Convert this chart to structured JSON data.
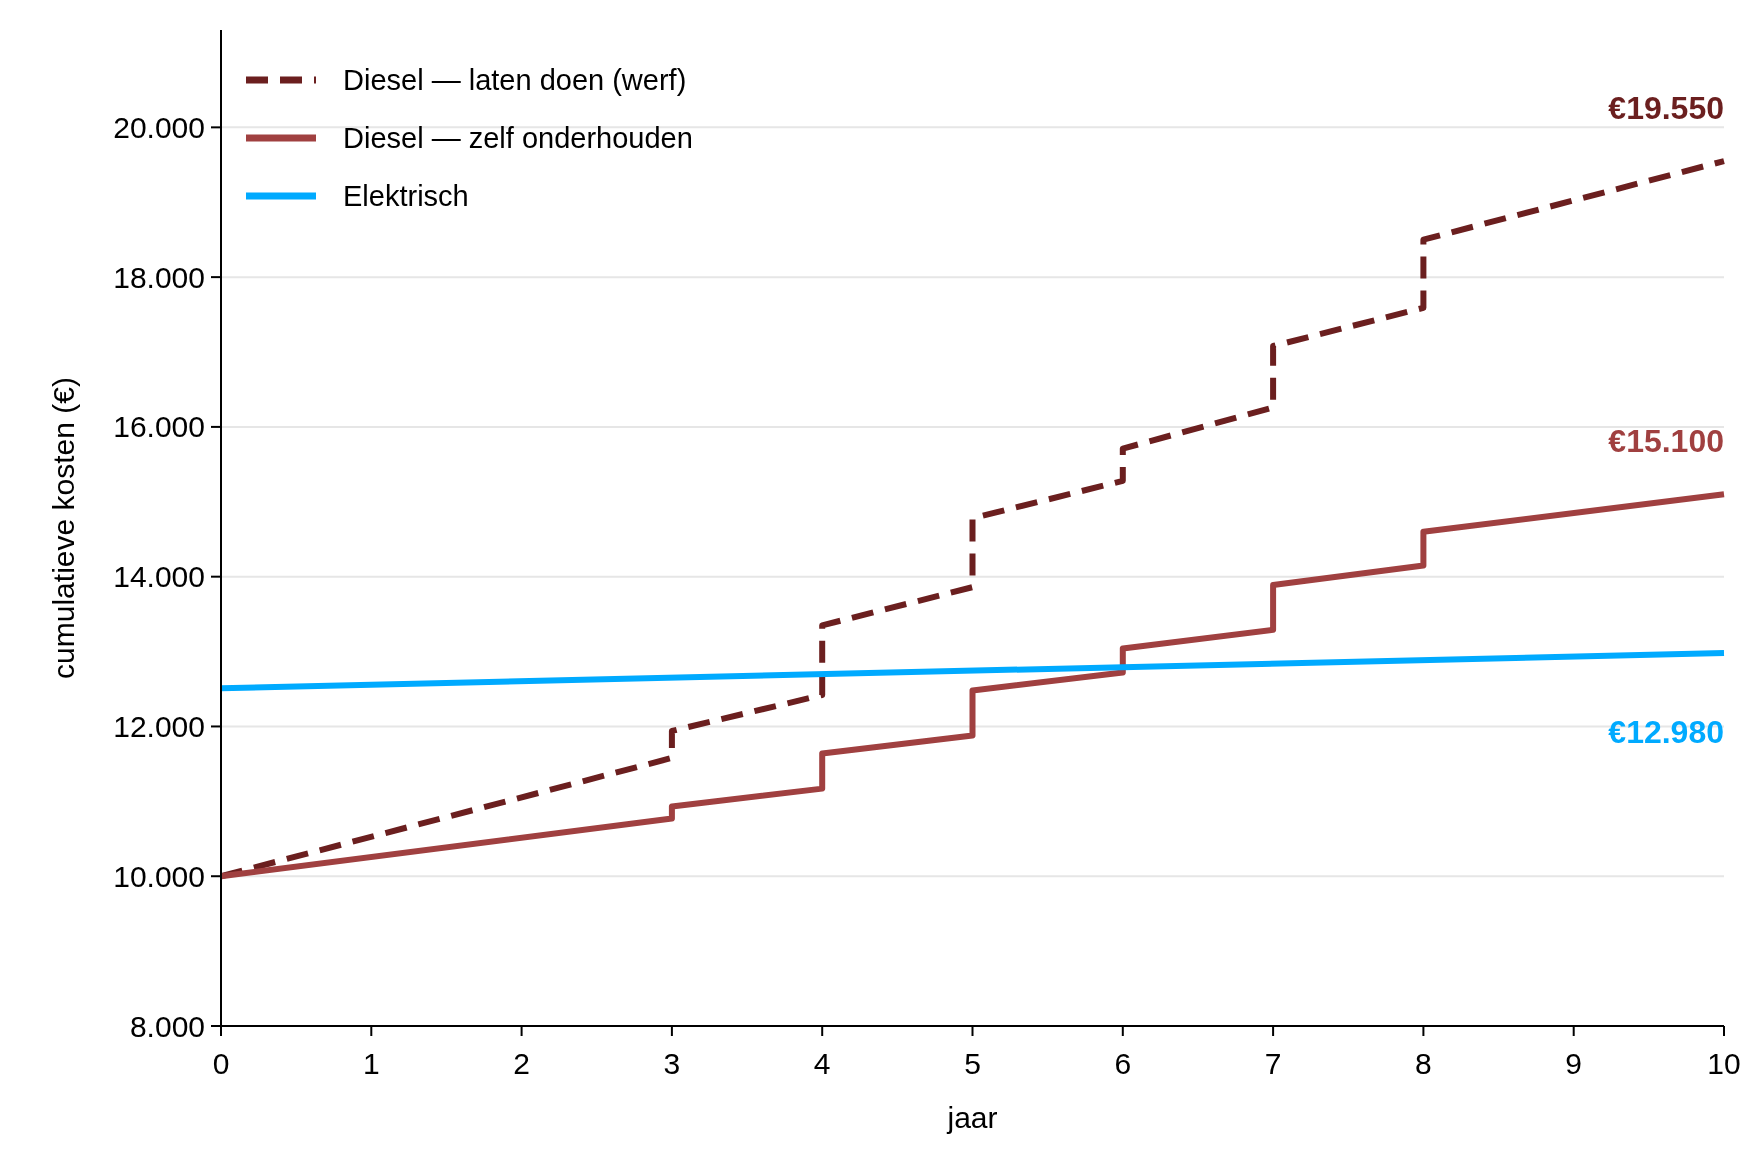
{
  "chart_data": {
    "type": "line",
    "xlabel": "jaar",
    "ylabel": "cumulatieve kosten (€)",
    "xlim": [
      0,
      10
    ],
    "xticks": [
      0,
      1,
      2,
      3,
      4,
      5,
      6,
      7,
      8,
      9,
      10
    ],
    "ylim": [
      8000,
      21300
    ],
    "yticks": [
      {
        "value": 8000,
        "label": "8.000"
      },
      {
        "value": 10000,
        "label": "10.000"
      },
      {
        "value": 12000,
        "label": "12.000"
      },
      {
        "value": 14000,
        "label": "14.000"
      },
      {
        "value": 16000,
        "label": "16.000"
      },
      {
        "value": 18000,
        "label": "18.000"
      },
      {
        "value": 20000,
        "label": "20.000"
      }
    ],
    "grid": "y",
    "legend": "top left",
    "marker": "none",
    "series": [
      {
        "name": "Diesel — laten doen (werf)",
        "color": "#6b1f1f",
        "line_style": "dashed",
        "x": [
          0,
          3,
          3,
          4,
          4,
          5,
          5,
          6,
          6,
          7,
          7,
          8,
          8,
          10
        ],
        "values": [
          10000,
          11580,
          11940,
          12420,
          13350,
          13860,
          14780,
          15280,
          15710,
          16260,
          17080,
          17590,
          18500,
          19550
        ]
      },
      {
        "name": "Diesel — zelf onderhouden",
        "color": "#a04040",
        "line_style": "solid",
        "x": [
          0,
          3,
          3,
          4,
          4,
          5,
          5,
          6,
          6,
          7,
          7,
          8,
          8,
          10
        ],
        "values": [
          10000,
          10770,
          10930,
          11170,
          11640,
          11880,
          12480,
          12720,
          13040,
          13290,
          13890,
          14150,
          14600,
          15100
        ]
      },
      {
        "name": "Elektrisch",
        "color": "#00aaff",
        "line_style": "solid",
        "x": [
          0,
          10
        ],
        "values": [
          12510,
          12980
        ]
      }
    ],
    "annotations": [
      "€19.550",
      "€15.100",
      "€12.980"
    ]
  }
}
